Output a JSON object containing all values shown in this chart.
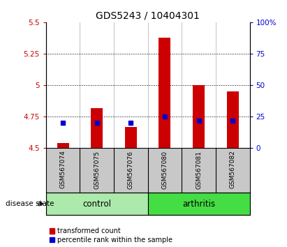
{
  "title": "GDS5243 / 10404301",
  "samples": [
    "GSM567074",
    "GSM567075",
    "GSM567076",
    "GSM567080",
    "GSM567081",
    "GSM567082"
  ],
  "red_values": [
    4.54,
    4.82,
    4.67,
    5.38,
    5.0,
    4.95
  ],
  "blue_percentiles": [
    20,
    20,
    20,
    25,
    22,
    22
  ],
  "y_min": 4.5,
  "y_max": 5.5,
  "y_ticks": [
    4.5,
    4.75,
    5.0,
    5.25,
    5.5
  ],
  "y_tick_labels": [
    "4.5",
    "4.75",
    "5",
    "5.25",
    "5.5"
  ],
  "y2_ticks": [
    0,
    25,
    50,
    75,
    100
  ],
  "y2_tick_labels": [
    "0",
    "25",
    "50",
    "75",
    "100%"
  ],
  "groups": [
    {
      "label": "control",
      "indices": [
        0,
        1,
        2
      ],
      "color": "#ABEAAB"
    },
    {
      "label": "arthritis",
      "indices": [
        3,
        4,
        5
      ],
      "color": "#44DD44"
    }
  ],
  "disease_label": "disease state",
  "bar_color": "#CC0000",
  "square_color": "#0000CC",
  "legend_items": [
    {
      "color": "#CC0000",
      "label": "transformed count"
    },
    {
      "color": "#0000CC",
      "label": "percentile rank within the sample"
    }
  ],
  "title_fontsize": 10,
  "tick_fontsize": 7.5,
  "sample_label_fontsize": 6.5,
  "grid_color": "#000000",
  "grid_linestyle": ":",
  "grid_linewidth": 0.7,
  "bar_width": 0.35
}
